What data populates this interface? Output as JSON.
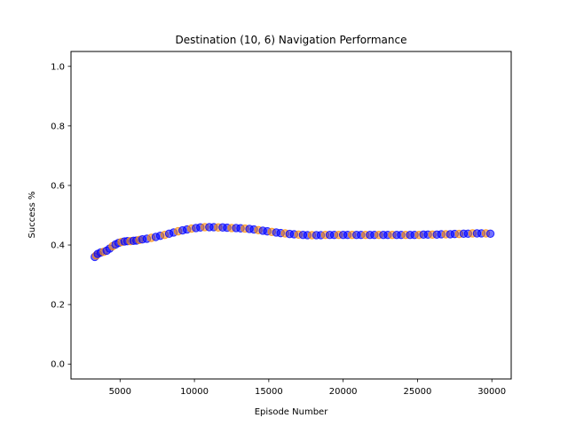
{
  "chart_data": {
    "type": "scatter",
    "title": "Destination (10, 6) Navigation Performance",
    "xlabel": "Episode Number",
    "ylabel": "Success %",
    "xlim": [
      1700,
      31300
    ],
    "ylim": [
      -0.05,
      1.05
    ],
    "x_ticks": [
      5000,
      10000,
      15000,
      20000,
      25000,
      30000
    ],
    "y_ticks": [
      0.0,
      0.2,
      0.4,
      0.6,
      0.8,
      1.0
    ],
    "x_tick_labels": [
      "5000",
      "10000",
      "15000",
      "20000",
      "25000",
      "30000"
    ],
    "y_tick_labels": [
      "0.0",
      "0.2",
      "0.4",
      "0.6",
      "0.8",
      "1.0"
    ],
    "grid": false,
    "colors": {
      "primary": "#0000ff",
      "secondary": "#ff8c00"
    },
    "series": [
      {
        "values": [
          {
            "x": 3300,
            "y": 0.36
          },
          {
            "x": 3400,
            "y": 0.365
          },
          {
            "x": 3500,
            "y": 0.37
          },
          {
            "x": 3700,
            "y": 0.375
          },
          {
            "x": 3900,
            "y": 0.377
          },
          {
            "x": 4100,
            "y": 0.381
          },
          {
            "x": 4300,
            "y": 0.388
          },
          {
            "x": 4500,
            "y": 0.396
          },
          {
            "x": 4700,
            "y": 0.402
          },
          {
            "x": 4900,
            "y": 0.407
          },
          {
            "x": 5100,
            "y": 0.41
          },
          {
            "x": 5300,
            "y": 0.412
          },
          {
            "x": 5500,
            "y": 0.413
          },
          {
            "x": 5700,
            "y": 0.413
          },
          {
            "x": 5900,
            "y": 0.414
          },
          {
            "x": 6100,
            "y": 0.415
          },
          {
            "x": 6300,
            "y": 0.417
          },
          {
            "x": 6500,
            "y": 0.419
          },
          {
            "x": 6800,
            "y": 0.421
          },
          {
            "x": 7100,
            "y": 0.424
          },
          {
            "x": 7400,
            "y": 0.427
          },
          {
            "x": 7700,
            "y": 0.431
          },
          {
            "x": 8000,
            "y": 0.434
          },
          {
            "x": 8300,
            "y": 0.438
          },
          {
            "x": 8600,
            "y": 0.442
          },
          {
            "x": 8900,
            "y": 0.446
          },
          {
            "x": 9200,
            "y": 0.449
          },
          {
            "x": 9500,
            "y": 0.452
          },
          {
            "x": 9800,
            "y": 0.455
          },
          {
            "x": 10100,
            "y": 0.457
          },
          {
            "x": 10400,
            "y": 0.459
          },
          {
            "x": 10700,
            "y": 0.46
          },
          {
            "x": 11000,
            "y": 0.46
          },
          {
            "x": 11300,
            "y": 0.46
          },
          {
            "x": 11600,
            "y": 0.459
          },
          {
            "x": 11900,
            "y": 0.459
          },
          {
            "x": 12200,
            "y": 0.458
          },
          {
            "x": 12500,
            "y": 0.457
          },
          {
            "x": 12800,
            "y": 0.457
          },
          {
            "x": 13100,
            "y": 0.456
          },
          {
            "x": 13400,
            "y": 0.455
          },
          {
            "x": 13700,
            "y": 0.454
          },
          {
            "x": 14000,
            "y": 0.452
          },
          {
            "x": 14300,
            "y": 0.45
          },
          {
            "x": 14600,
            "y": 0.448
          },
          {
            "x": 14900,
            "y": 0.446
          },
          {
            "x": 15200,
            "y": 0.444
          },
          {
            "x": 15500,
            "y": 0.442
          },
          {
            "x": 15800,
            "y": 0.44
          },
          {
            "x": 16100,
            "y": 0.439
          },
          {
            "x": 16400,
            "y": 0.437
          },
          {
            "x": 16700,
            "y": 0.436
          },
          {
            "x": 17000,
            "y": 0.435
          },
          {
            "x": 17300,
            "y": 0.434
          },
          {
            "x": 17600,
            "y": 0.433
          },
          {
            "x": 17900,
            "y": 0.433
          },
          {
            "x": 18200,
            "y": 0.433
          },
          {
            "x": 18500,
            "y": 0.433
          },
          {
            "x": 18800,
            "y": 0.434
          },
          {
            "x": 19100,
            "y": 0.434
          },
          {
            "x": 19400,
            "y": 0.434
          },
          {
            "x": 19700,
            "y": 0.434
          },
          {
            "x": 20000,
            "y": 0.434
          },
          {
            "x": 20300,
            "y": 0.434
          },
          {
            "x": 20600,
            "y": 0.434
          },
          {
            "x": 20900,
            "y": 0.434
          },
          {
            "x": 21200,
            "y": 0.434
          },
          {
            "x": 21500,
            "y": 0.434
          },
          {
            "x": 21800,
            "y": 0.434
          },
          {
            "x": 22100,
            "y": 0.434
          },
          {
            "x": 22400,
            "y": 0.434
          },
          {
            "x": 22700,
            "y": 0.434
          },
          {
            "x": 23000,
            "y": 0.434
          },
          {
            "x": 23300,
            "y": 0.434
          },
          {
            "x": 23600,
            "y": 0.434
          },
          {
            "x": 23900,
            "y": 0.434
          },
          {
            "x": 24200,
            "y": 0.434
          },
          {
            "x": 24500,
            "y": 0.434
          },
          {
            "x": 24800,
            "y": 0.434
          },
          {
            "x": 25100,
            "y": 0.434
          },
          {
            "x": 25400,
            "y": 0.435
          },
          {
            "x": 25700,
            "y": 0.435
          },
          {
            "x": 26000,
            "y": 0.435
          },
          {
            "x": 26300,
            "y": 0.435
          },
          {
            "x": 26600,
            "y": 0.436
          },
          {
            "x": 26900,
            "y": 0.436
          },
          {
            "x": 27200,
            "y": 0.436
          },
          {
            "x": 27500,
            "y": 0.437
          },
          {
            "x": 27800,
            "y": 0.437
          },
          {
            "x": 28100,
            "y": 0.438
          },
          {
            "x": 28400,
            "y": 0.438
          },
          {
            "x": 28700,
            "y": 0.439
          },
          {
            "x": 29000,
            "y": 0.439
          },
          {
            "x": 29300,
            "y": 0.439
          },
          {
            "x": 29600,
            "y": 0.439
          },
          {
            "x": 29900,
            "y": 0.438
          }
        ]
      }
    ]
  }
}
